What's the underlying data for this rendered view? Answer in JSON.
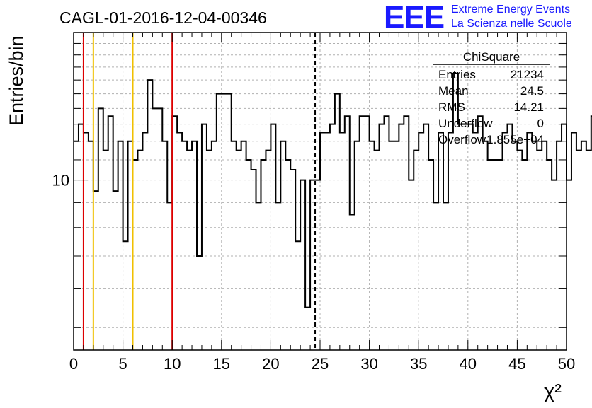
{
  "chart_data": {
    "type": "bar",
    "title": "CAGL-01-2016-12-04-00346",
    "xlabel": "χ²",
    "ylabel": "Entries/bin",
    "xlim": [
      0,
      50
    ],
    "ylim": [
      4.5,
      20
    ],
    "y_scale": "log",
    "grid": true,
    "bin_width": 0.5,
    "x_ticks": [
      0,
      5,
      10,
      15,
      20,
      25,
      30,
      35,
      40,
      45,
      50
    ],
    "x_tick_labels": [
      "0",
      "5",
      "10",
      "15",
      "20",
      "25",
      "30",
      "35",
      "40",
      "45",
      "50"
    ],
    "y_tick_values": [
      10
    ],
    "y_tick_labels": [
      "10"
    ],
    "values": [
      12,
      13,
      12.5,
      12,
      9.5,
      14,
      11.5,
      13.5,
      9.5,
      12,
      7.5,
      12,
      11,
      11.5,
      12.5,
      16,
      14,
      14,
      12,
      9,
      13.5,
      12.5,
      12,
      11.5,
      12,
      7,
      13,
      11.5,
      12,
      15,
      15,
      15,
      12,
      11.5,
      12,
      11,
      10.5,
      9,
      11,
      11.5,
      13,
      9,
      12,
      11,
      10.5,
      7.5,
      10,
      5.5,
      10,
      10,
      12.5,
      12.5,
      13,
      15,
      12.5,
      13.5,
      8.5,
      12,
      13.5,
      13.5,
      12,
      11.5,
      13,
      13.5,
      12,
      12,
      13,
      13.5,
      10,
      11.5,
      12.5,
      13,
      11,
      9,
      12.5,
      9,
      12.5,
      16.5,
      13,
      13,
      13,
      12.5,
      13.5,
      12,
      11,
      11,
      11,
      12.5,
      13,
      12,
      11.5,
      11,
      12.5,
      12,
      11.5,
      12,
      11,
      10,
      12,
      13,
      10,
      12.5,
      11.5,
      12,
      11.5,
      13.5,
      12,
      12.5,
      10.5,
      11.5,
      12,
      11,
      10.5,
      7.5,
      11.5,
      7.5,
      11,
      12
    ],
    "vertical_lines": [
      {
        "x": 1,
        "color": "#dd0000",
        "style": "solid"
      },
      {
        "x": 2,
        "color": "#f0c000",
        "style": "solid"
      },
      {
        "x": 6,
        "color": "#f0c000",
        "style": "solid"
      },
      {
        "x": 10,
        "color": "#dd0000",
        "style": "solid"
      },
      {
        "x": 24.5,
        "color": "#000000",
        "style": "dashed"
      }
    ],
    "stats_box": {
      "title": "ChiSquare",
      "rows": [
        {
          "label": "Entries",
          "value": "21234"
        },
        {
          "label": "Mean",
          "value": "24.5"
        },
        {
          "label": "RMS",
          "value": "14.21"
        },
        {
          "label": "Underflow",
          "value": "0"
        },
        {
          "label": "Overflow",
          "value": "1.855e+04"
        }
      ]
    },
    "logo": {
      "mark": "EEE",
      "line1": "Extreme Energy Events",
      "line2": "La Scienza nelle Scuole",
      "color": "#1a1aff"
    }
  }
}
